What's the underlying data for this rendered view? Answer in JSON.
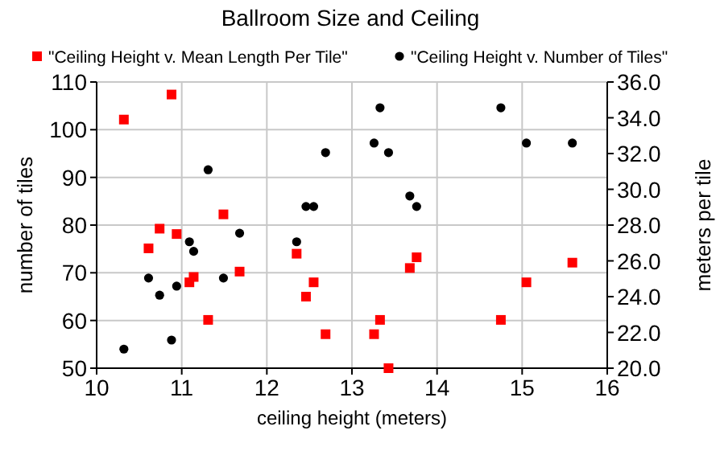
{
  "chart_data": {
    "type": "scatter",
    "title": "Ballroom Size and Ceiling",
    "xlabel": "ceiling height (meters)",
    "ylabel": "number of tiles",
    "y2label": "meters per tile",
    "xlim": [
      10,
      16
    ],
    "xticks": [
      10,
      11,
      12,
      13,
      14,
      15,
      16
    ],
    "ylim": [
      50,
      110
    ],
    "yticks": [
      50,
      60,
      70,
      80,
      90,
      100,
      110
    ],
    "y2lim": [
      20,
      36
    ],
    "y2ticks": [
      {
        "value": 20,
        "label": "20.0"
      },
      {
        "value": 22,
        "label": "22.0"
      },
      {
        "value": 24,
        "label": "24.0"
      },
      {
        "value": 26,
        "label": "26.0"
      },
      {
        "value": 28,
        "label": "28.0"
      },
      {
        "value": 30,
        "label": "30.0"
      },
      {
        "value": 32,
        "label": "32.0"
      },
      {
        "value": 34,
        "label": "34.0"
      },
      {
        "value": 36,
        "label": "36.0"
      }
    ],
    "grid": true,
    "legend": "top",
    "series": [
      {
        "name": "\"Ceiling Height v. Mean Length Per Tile\"",
        "color": "#ff0000",
        "marker": "square",
        "axis": "y2",
        "x": [
          10.32,
          10.88,
          10.74,
          10.61,
          10.94,
          11.09,
          11.14,
          11.31,
          11.49,
          11.68,
          12.35,
          12.46,
          12.55,
          12.69,
          13.26,
          13.33,
          13.43,
          13.68,
          13.76,
          14.75,
          15.05,
          15.59
        ],
        "values": [
          33.9,
          35.3,
          27.8,
          26.7,
          27.5,
          24.8,
          25.1,
          22.7,
          28.6,
          25.4,
          26.4,
          24.0,
          24.8,
          21.9,
          21.9,
          22.7,
          20.0,
          25.6,
          26.2,
          22.7,
          24.8,
          25.9
        ]
      },
      {
        "name": "\"Ceiling Height v. Number of Tiles\"",
        "color": "#000000",
        "marker": "circle",
        "x": [
          10.32,
          10.61,
          10.74,
          10.88,
          10.94,
          11.09,
          11.14,
          11.31,
          11.49,
          11.68,
          12.35,
          12.46,
          12.55,
          12.69,
          13.26,
          13.33,
          13.43,
          13.68,
          13.76,
          14.75,
          15.05,
          15.59
        ],
        "values": [
          54.0,
          68.9,
          65.3,
          55.9,
          67.2,
          76.5,
          74.5,
          91.6,
          68.9,
          78.3,
          76.5,
          83.9,
          83.9,
          95.2,
          97.2,
          104.6,
          95.2,
          86.1,
          83.9,
          104.6,
          97.2,
          97.2
        ]
      }
    ]
  }
}
